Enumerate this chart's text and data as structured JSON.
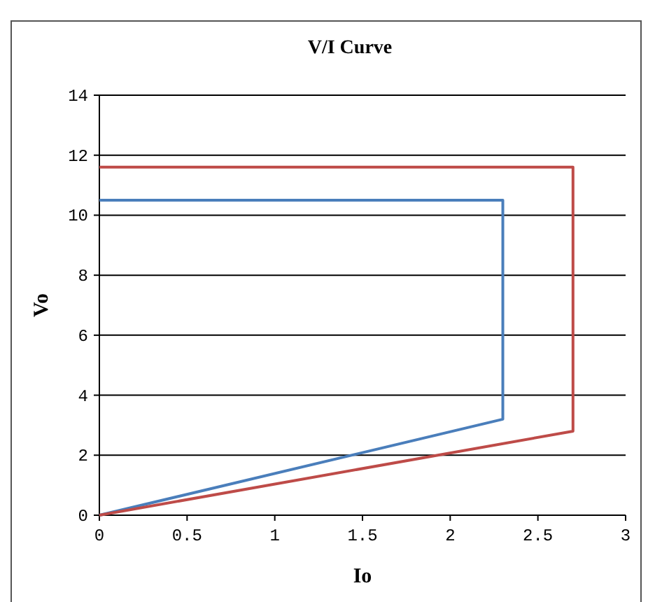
{
  "chart_data": {
    "type": "line",
    "title": "V/I Curve",
    "xlabel": "Io",
    "ylabel": "Vo",
    "series": [
      {
        "color": "#4a7ebb",
        "x": [
          0,
          2.3,
          2.3,
          0
        ],
        "values": [
          0,
          3.2,
          10.5,
          10.5
        ]
      },
      {
        "color": "#be4b48",
        "x": [
          0,
          2.7,
          2.7,
          0
        ],
        "values": [
          0,
          2.8,
          11.6,
          11.6
        ]
      }
    ],
    "xlim": [
      0,
      3
    ],
    "xticks": [
      0,
      {
        "value": 0.5,
        "label": "0.5"
      },
      1,
      {
        "value": 1.5,
        "label": "1.5"
      },
      2,
      {
        "value": 2.5,
        "label": "2.5"
      },
      3
    ],
    "ylim": [
      0,
      14
    ],
    "yticks": [
      0,
      2,
      4,
      6,
      8,
      10,
      12,
      14
    ],
    "grid": "y",
    "marker": "none",
    "line_style": "solid"
  }
}
